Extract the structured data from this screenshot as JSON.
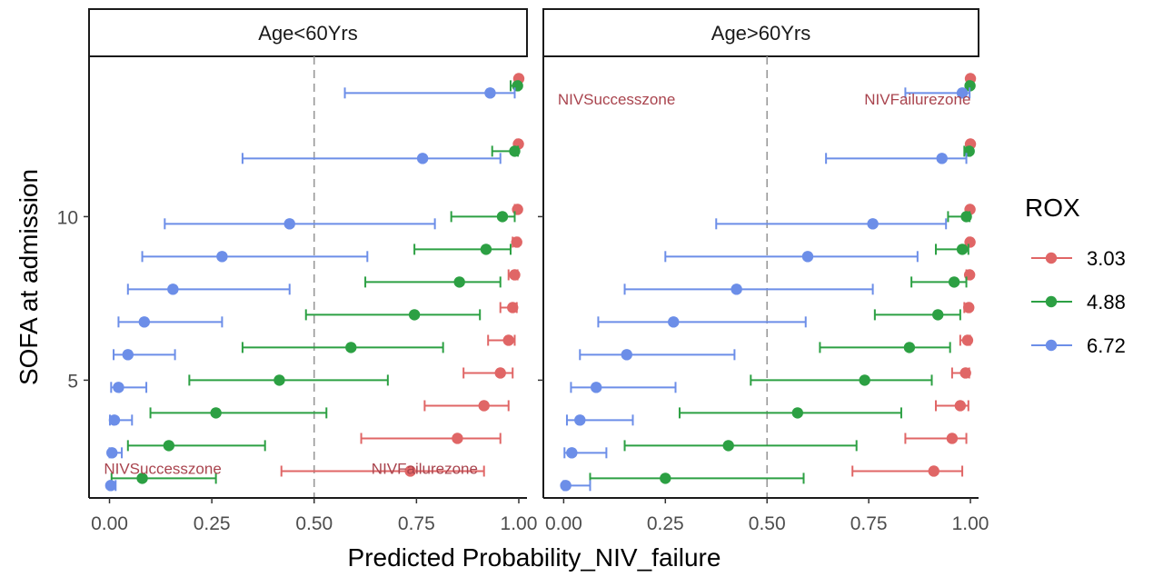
{
  "chart_data": {
    "type": "scatter",
    "subtype": "faceted-dot-errorbar",
    "xlabel": "Predicted Probability_NIV_failure",
    "ylabel": "SOFA at admission",
    "xlim": [
      -0.05,
      1.02
    ],
    "ylim": [
      1.4,
      14.9
    ],
    "x_ticks": [
      "0.00",
      "0.25",
      "0.50",
      "0.75",
      "1.00"
    ],
    "y_ticks": [
      "5",
      "10"
    ],
    "reference_line_x": 0.5,
    "legend": {
      "title": "ROX",
      "items": [
        {
          "label": "3.03",
          "color": "#E06666"
        },
        {
          "label": "4.88",
          "color": "#2CA043"
        },
        {
          "label": "6.72",
          "color": "#6C8EE8"
        }
      ]
    },
    "facets": [
      {
        "label": "Age<60Yrs",
        "annotations": [
          {
            "text": "NIVSuccesszone",
            "x": 0.13,
            "y": 2.3
          },
          {
            "text": "NIVFailurezone",
            "x": 0.77,
            "y": 2.3
          }
        ],
        "series": [
          {
            "name": "3.03",
            "points": [
              {
                "y": 2,
                "x": 0.735,
                "lo": 0.42,
                "hi": 0.915
              },
              {
                "y": 3,
                "x": 0.85,
                "lo": 0.615,
                "hi": 0.955
              },
              {
                "y": 4,
                "x": 0.915,
                "lo": 0.77,
                "hi": 0.975
              },
              {
                "y": 5,
                "x": 0.955,
                "lo": 0.865,
                "hi": 0.985
              },
              {
                "y": 6,
                "x": 0.975,
                "lo": 0.925,
                "hi": 0.99
              },
              {
                "y": 7,
                "x": 0.985,
                "lo": 0.955,
                "hi": 0.995
              },
              {
                "y": 8,
                "x": 0.99,
                "lo": 0.975,
                "hi": 0.997
              },
              {
                "y": 9,
                "x": 0.995,
                "lo": 0.985,
                "hi": 0.999
              },
              {
                "y": 10,
                "x": 0.997,
                "lo": 0.99,
                "hi": 0.999
              },
              {
                "y": 12,
                "x": 0.999,
                "lo": 0.995,
                "hi": 1.0
              },
              {
                "y": 14,
                "x": 1.0,
                "lo": 0.998,
                "hi": 1.0
              }
            ]
          },
          {
            "name": "4.88",
            "points": [
              {
                "y": 2,
                "x": 0.08,
                "lo": 0.005,
                "hi": 0.26
              },
              {
                "y": 3,
                "x": 0.145,
                "lo": 0.045,
                "hi": 0.38
              },
              {
                "y": 4,
                "x": 0.26,
                "lo": 0.1,
                "hi": 0.53
              },
              {
                "y": 5,
                "x": 0.415,
                "lo": 0.195,
                "hi": 0.68
              },
              {
                "y": 6,
                "x": 0.59,
                "lo": 0.325,
                "hi": 0.815
              },
              {
                "y": 7,
                "x": 0.745,
                "lo": 0.48,
                "hi": 0.905
              },
              {
                "y": 8,
                "x": 0.855,
                "lo": 0.625,
                "hi": 0.955
              },
              {
                "y": 9,
                "x": 0.92,
                "lo": 0.745,
                "hi": 0.98
              },
              {
                "y": 10,
                "x": 0.96,
                "lo": 0.835,
                "hi": 0.99
              },
              {
                "y": 12,
                "x": 0.99,
                "lo": 0.935,
                "hi": 0.998
              },
              {
                "y": 14,
                "x": 0.997,
                "lo": 0.98,
                "hi": 1.0
              }
            ]
          },
          {
            "name": "6.72",
            "points": [
              {
                "y": 2,
                "x": 0.003,
                "lo": 0.0,
                "hi": 0.015
              },
              {
                "y": 3,
                "x": 0.006,
                "lo": 0.0,
                "hi": 0.03
              },
              {
                "y": 4,
                "x": 0.012,
                "lo": 0.001,
                "hi": 0.055
              },
              {
                "y": 5,
                "x": 0.022,
                "lo": 0.004,
                "hi": 0.09
              },
              {
                "y": 6,
                "x": 0.045,
                "lo": 0.01,
                "hi": 0.16
              },
              {
                "y": 7,
                "x": 0.085,
                "lo": 0.022,
                "hi": 0.275
              },
              {
                "y": 8,
                "x": 0.155,
                "lo": 0.045,
                "hi": 0.44
              },
              {
                "y": 9,
                "x": 0.275,
                "lo": 0.08,
                "hi": 0.63
              },
              {
                "y": 10,
                "x": 0.44,
                "lo": 0.135,
                "hi": 0.795
              },
              {
                "y": 12,
                "x": 0.765,
                "lo": 0.325,
                "hi": 0.955
              },
              {
                "y": 14,
                "x": 0.93,
                "lo": 0.575,
                "hi": 0.99
              }
            ]
          }
        ]
      },
      {
        "label": "Age>60Yrs",
        "annotations": [
          {
            "text": "NIVSuccesszone",
            "x": 0.13,
            "y": 13.6
          },
          {
            "text": "NIVFailurezone",
            "x": 0.87,
            "y": 13.6
          }
        ],
        "series": [
          {
            "name": "3.03",
            "points": [
              {
                "y": 2,
                "x": 0.91,
                "lo": 0.71,
                "hi": 0.98
              },
              {
                "y": 3,
                "x": 0.955,
                "lo": 0.84,
                "hi": 0.99
              },
              {
                "y": 4,
                "x": 0.975,
                "lo": 0.915,
                "hi": 0.995
              },
              {
                "y": 5,
                "x": 0.988,
                "lo": 0.955,
                "hi": 0.997
              },
              {
                "y": 6,
                "x": 0.993,
                "lo": 0.975,
                "hi": 0.999
              },
              {
                "y": 7,
                "x": 0.996,
                "lo": 0.985,
                "hi": 0.999
              },
              {
                "y": 8,
                "x": 0.998,
                "lo": 0.99,
                "hi": 1.0
              },
              {
                "y": 9,
                "x": 0.999,
                "lo": 0.995,
                "hi": 1.0
              },
              {
                "y": 10,
                "x": 0.999,
                "lo": 0.997,
                "hi": 1.0
              },
              {
                "y": 12,
                "x": 1.0,
                "lo": 0.999,
                "hi": 1.0
              },
              {
                "y": 14,
                "x": 1.0,
                "lo": 0.999,
                "hi": 1.0
              }
            ]
          },
          {
            "name": "4.88",
            "points": [
              {
                "y": 2,
                "x": 0.25,
                "lo": 0.065,
                "hi": 0.59
              },
              {
                "y": 3,
                "x": 0.405,
                "lo": 0.15,
                "hi": 0.72
              },
              {
                "y": 4,
                "x": 0.575,
                "lo": 0.285,
                "hi": 0.83
              },
              {
                "y": 5,
                "x": 0.74,
                "lo": 0.46,
                "hi": 0.905
              },
              {
                "y": 6,
                "x": 0.85,
                "lo": 0.63,
                "hi": 0.95
              },
              {
                "y": 7,
                "x": 0.92,
                "lo": 0.765,
                "hi": 0.975
              },
              {
                "y": 8,
                "x": 0.96,
                "lo": 0.855,
                "hi": 0.99
              },
              {
                "y": 9,
                "x": 0.98,
                "lo": 0.915,
                "hi": 0.995
              },
              {
                "y": 10,
                "x": 0.99,
                "lo": 0.945,
                "hi": 0.998
              },
              {
                "y": 12,
                "x": 0.997,
                "lo": 0.985,
                "hi": 1.0
              },
              {
                "y": 14,
                "x": 0.999,
                "lo": 0.995,
                "hi": 1.0
              }
            ]
          },
          {
            "name": "6.72",
            "points": [
              {
                "y": 2,
                "x": 0.005,
                "lo": 0.0,
                "hi": 0.065
              },
              {
                "y": 3,
                "x": 0.02,
                "lo": 0.002,
                "hi": 0.105
              },
              {
                "y": 4,
                "x": 0.04,
                "lo": 0.008,
                "hi": 0.17
              },
              {
                "y": 5,
                "x": 0.08,
                "lo": 0.018,
                "hi": 0.275
              },
              {
                "y": 6,
                "x": 0.155,
                "lo": 0.04,
                "hi": 0.42
              },
              {
                "y": 7,
                "x": 0.27,
                "lo": 0.085,
                "hi": 0.595
              },
              {
                "y": 8,
                "x": 0.425,
                "lo": 0.15,
                "hi": 0.76
              },
              {
                "y": 9,
                "x": 0.6,
                "lo": 0.25,
                "hi": 0.87
              },
              {
                "y": 10,
                "x": 0.76,
                "lo": 0.375,
                "hi": 0.94
              },
              {
                "y": 12,
                "x": 0.93,
                "lo": 0.645,
                "hi": 0.99
              },
              {
                "y": 14,
                "x": 0.98,
                "lo": 0.84,
                "hi": 0.998
              }
            ]
          }
        ]
      }
    ]
  },
  "zone_color": "#A9444E"
}
